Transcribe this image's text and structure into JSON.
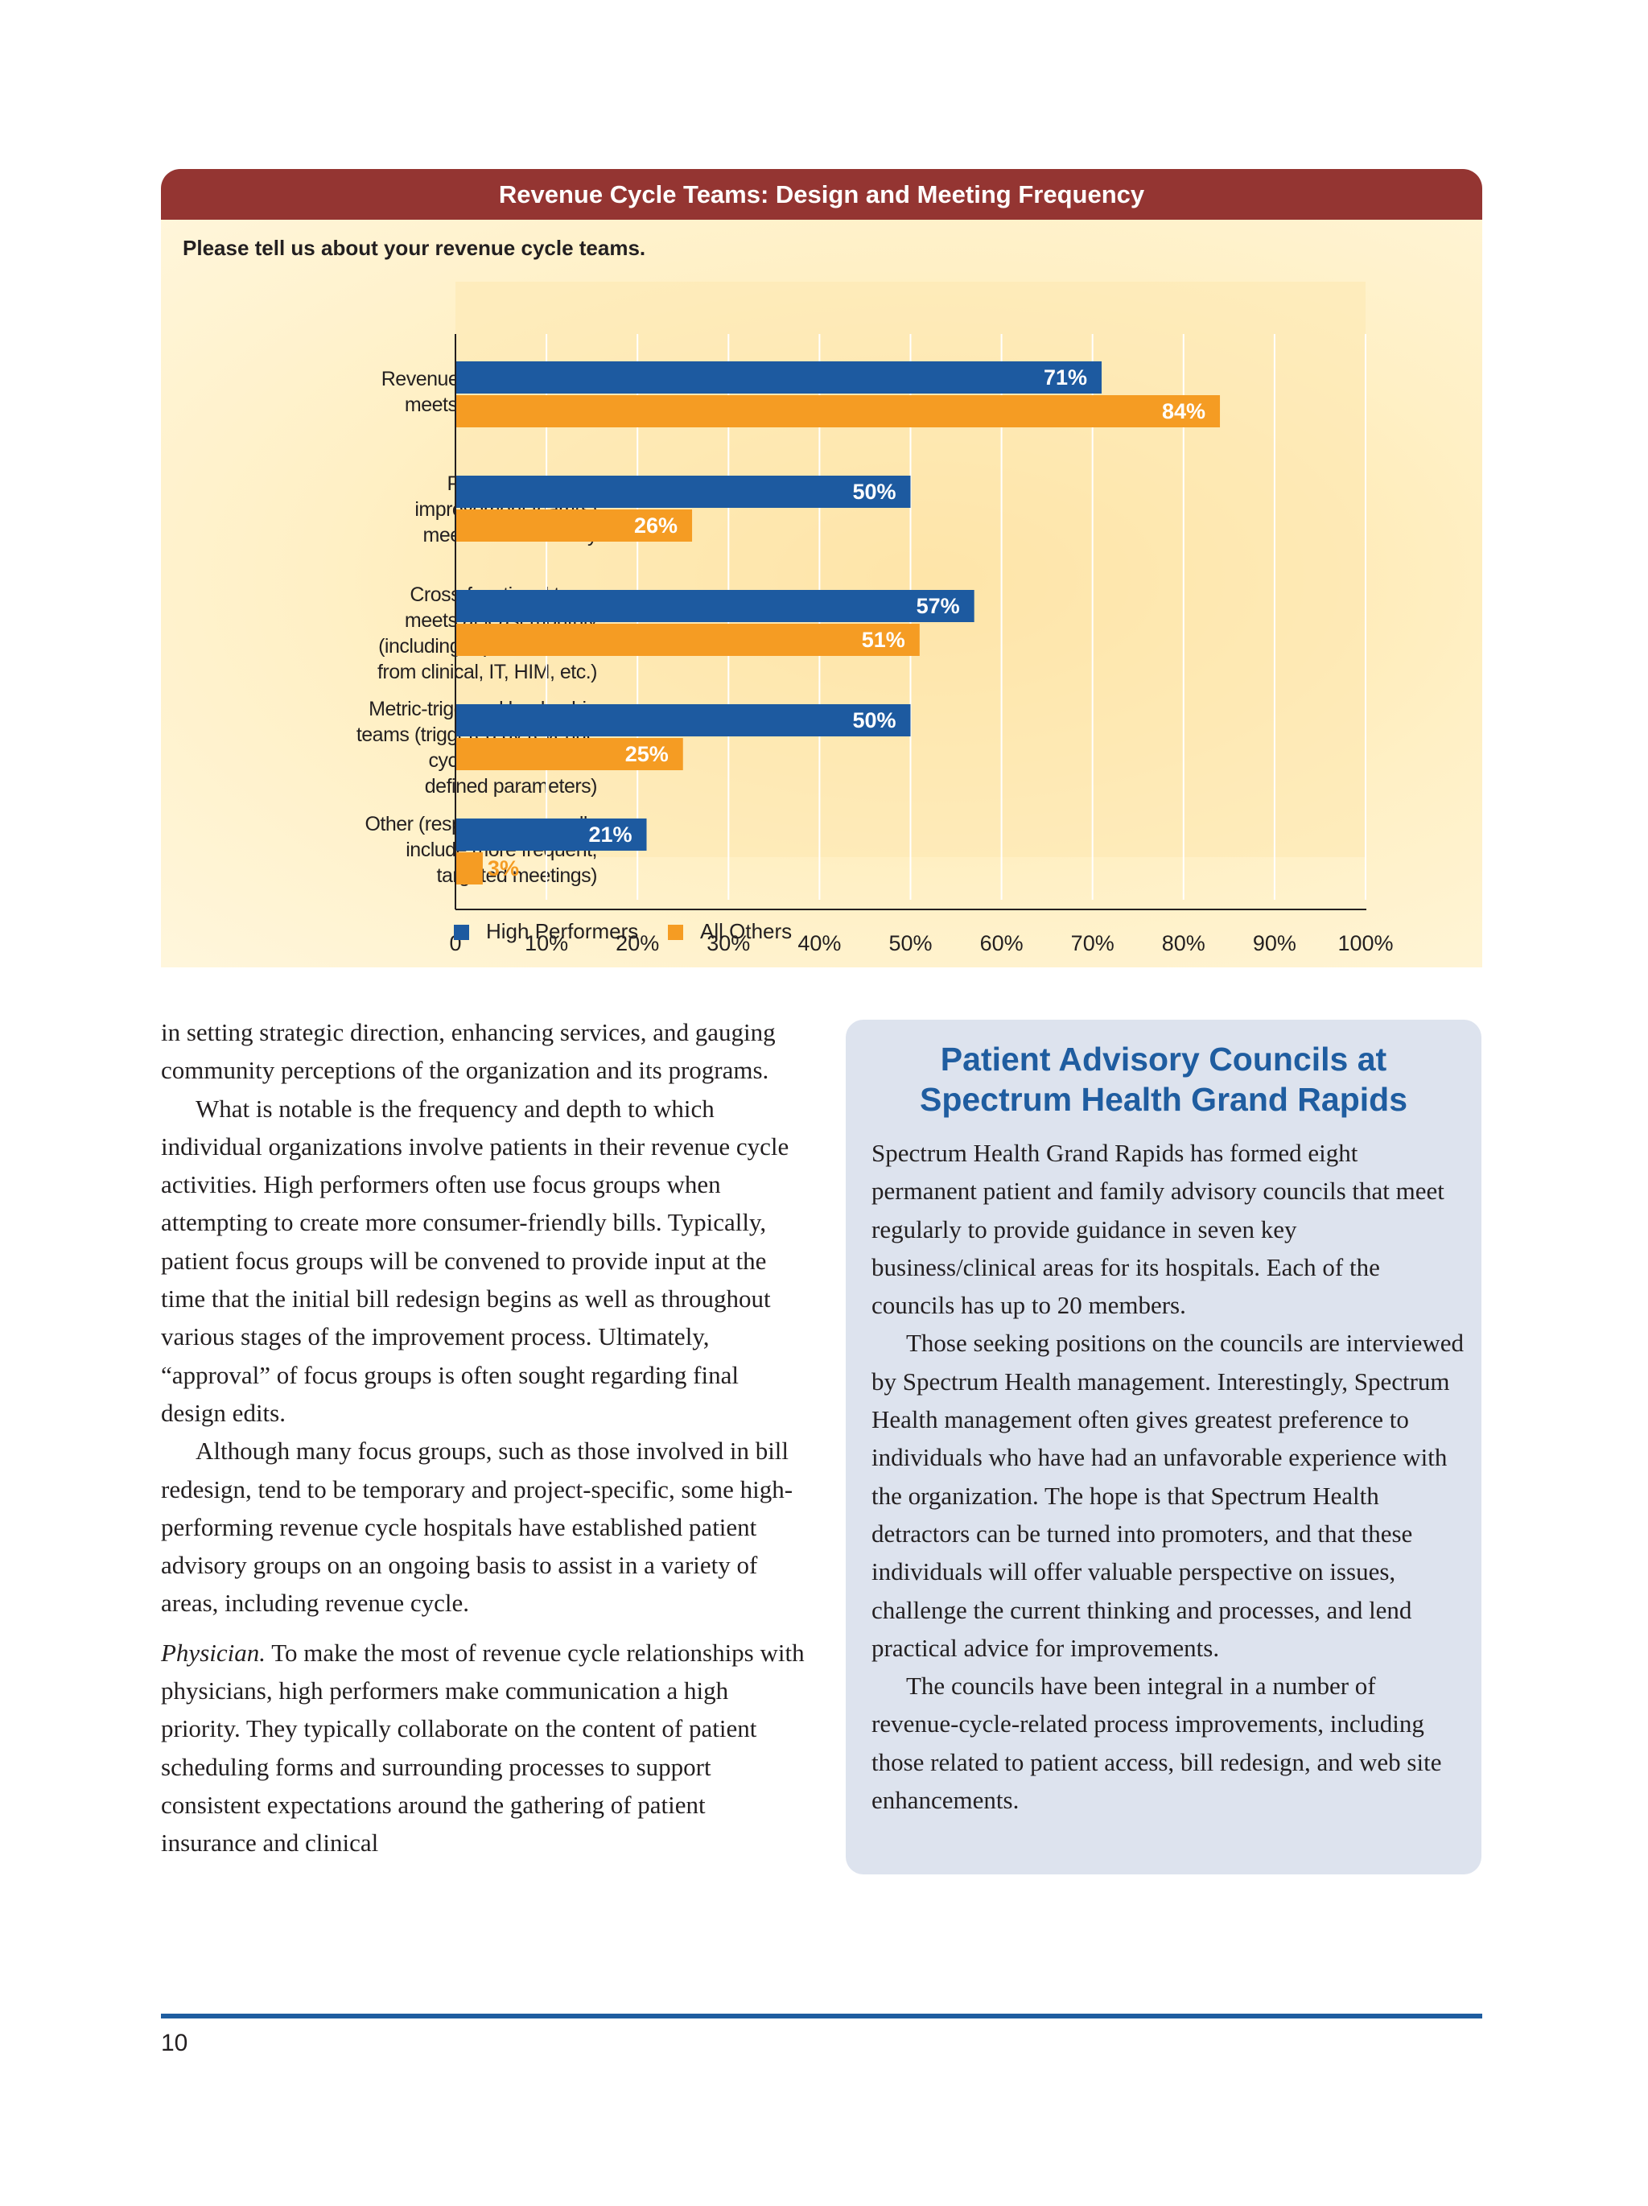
{
  "figure": {
    "title": "Revenue Cycle Teams: Design and Meeting Frequency",
    "question": "Please tell us about your revenue cycle teams."
  },
  "chart_data": {
    "type": "bar",
    "orientation": "horizontal",
    "categories": [
      [
        "Revenue cycle staff team",
        "meets at least monthly"
      ],
      [
        "Process centered",
        "improvement team(s)",
        "meet at least weekly"
      ],
      [
        "Cross-functional team",
        "meets at least monthly",
        "(including representatives",
        "from clinical, IT, HIM, etc.)"
      ],
      [
        "Metric-triggered leadership",
        "teams (triggered by revenue",
        "cycle metric outside",
        "defined parameters)"
      ],
      [
        "Other (responses generally",
        "include more frequent,",
        "targeted meetings)"
      ]
    ],
    "series": [
      {
        "name": "High Performers",
        "values": [
          71,
          50,
          57,
          50,
          21
        ],
        "labels": [
          "71%",
          "50%",
          "57%",
          "50%",
          "21%"
        ],
        "color": "#1d5aa0"
      },
      {
        "name": "All Others",
        "values": [
          84,
          26,
          51,
          25,
          3
        ],
        "labels": [
          "84%",
          "26%",
          "51%",
          "25%",
          "3%"
        ],
        "color": "#f59c23"
      }
    ],
    "xlim": [
      0,
      100
    ],
    "xticks": [
      0,
      10,
      20,
      30,
      40,
      50,
      60,
      70,
      80,
      90,
      100
    ],
    "xtick_labels": [
      "0",
      "10%",
      "20%",
      "30%",
      "40%",
      "50%",
      "60%",
      "70%",
      "80%",
      "90%",
      "100%"
    ],
    "grid": true,
    "legend_position": "bottom-left"
  },
  "left_column": [
    "in setting strategic direction, enhancing services, and gauging community perceptions of the organization and its programs.",
    "What is notable is the frequency and depth to which individual organizations involve patients in their revenue cycle activities. High performers often use focus groups when attempting to create more consumer-friendly bills. Typically, patient focus groups will be convened to provide input at the time that the initial bill redesign begins as well as throughout various stages of the improvement process. Ultimately, “approval” of focus groups is often sought regarding final design edits.",
    "Although many focus groups, such as those involved in bill redesign, tend to be temporary and project-specific, some high-performing revenue cycle hospitals have established patient advisory groups on an ongoing basis to assist in a variety of areas, including revenue cycle."
  ],
  "physician": {
    "lead": "Physician.",
    "text": " To make the most of revenue cycle relationships with physicians, high performers make communication a high priority. They typically collaborate on the content of patient scheduling forms and surrounding processes to support consistent expectations around the gathering of patient insurance and clinical"
  },
  "sidebar": {
    "title_line1": "Patient Advisory Councils at",
    "title_line2": "Spectrum Health Grand Rapids",
    "paragraphs": [
      "Spectrum Health Grand Rapids has formed eight permanent patient and family advisory councils that meet regularly to provide guidance in seven key business/clinical areas for its hospitals. Each of the councils has up to 20 members.",
      "Those seeking positions on the councils are interviewed by Spectrum Health management. Interestingly, Spectrum Health management often gives greatest preference to individuals who have had an unfavorable experience with the organization. The hope is that Spectrum Health detractors can be turned into promoters, and that these individuals will offer valuable perspective on issues, challenge the current thinking and processes, and lend practical advice for improvements.",
      "The councils have been integral in a number of revenue-cycle-related process improvements, including those related to patient access, bill redesign, and web site enhancements."
    ]
  },
  "page_number": "10"
}
